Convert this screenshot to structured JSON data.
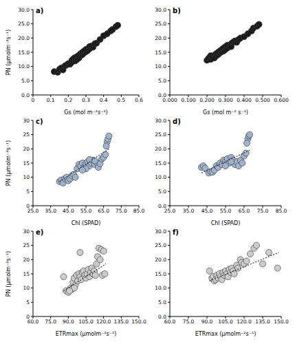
{
  "chart_data": [
    {
      "type": "scatter",
      "title": "a)",
      "x_label": "Gs (mol m⁻²s⁻¹)",
      "y_label": "PN (µmolm⁻²s⁻¹)",
      "color": "#1a1a1a",
      "marker": "circle",
      "xlim": [
        0,
        0.6
      ],
      "xticks": [
        0,
        0.1,
        0.2,
        0.3,
        0.4,
        0.5,
        0.6
      ],
      "ylim": [
        0,
        30
      ],
      "yticks": [
        {
          "value": 0,
          "label": "0.0"
        },
        {
          "value": 5,
          "label": "5.0"
        },
        {
          "value": 10,
          "label": "10.0"
        },
        {
          "value": 15,
          "label": "15.0"
        },
        {
          "value": 20,
          "label": "20.0"
        },
        {
          "value": 25,
          "label": "25.0"
        },
        {
          "value": 30,
          "label": "30.0"
        }
      ],
      "x": [
        0.12,
        0.14,
        0.15,
        0.16,
        0.17,
        0.18,
        0.19,
        0.2,
        0.21,
        0.22,
        0.22,
        0.23,
        0.24,
        0.24,
        0.25,
        0.25,
        0.26,
        0.26,
        0.27,
        0.27,
        0.28,
        0.28,
        0.29,
        0.29,
        0.3,
        0.3,
        0.31,
        0.32,
        0.32,
        0.33,
        0.34,
        0.35,
        0.36,
        0.38,
        0.4,
        0.42,
        0.44,
        0.45,
        0.47,
        0.48
      ],
      "values": [
        8.2,
        8.0,
        9.0,
        9.5,
        8.8,
        10.2,
        10.5,
        11.0,
        10.8,
        12.2,
        11.5,
        12.8,
        12.0,
        13.2,
        13.5,
        12.5,
        14.0,
        13.0,
        14.5,
        13.8,
        14.2,
        15.0,
        14.8,
        15.5,
        15.2,
        16.0,
        15.6,
        16.2,
        17.0,
        17.2,
        16.8,
        18.0,
        18.2,
        19.5,
        20.8,
        21.5,
        22.5,
        23.0,
        24.0,
        24.5
      ],
      "trend": {
        "x": [
          0.12,
          0.49
        ],
        "values": [
          7.2,
          24.0
        ],
        "line_style": "dotted"
      }
    },
    {
      "type": "scatter",
      "title": "b)",
      "x_label": "Gs (mol m⁻² s⁻¹)",
      "color": "#1a1a1a",
      "marker": "circle",
      "xlim": [
        0,
        0.6
      ],
      "xticks": [
        {
          "value": 0,
          "label": "0.000"
        },
        {
          "value": 0.1,
          "label": "0.100"
        },
        {
          "value": 0.2,
          "label": "0.200"
        },
        {
          "value": 0.3,
          "label": "0.300"
        },
        {
          "value": 0.4,
          "label": "0.400"
        },
        {
          "value": 0.5,
          "label": "0.500"
        },
        {
          "value": 0.6,
          "label": "0.600"
        }
      ],
      "ylim": [
        0,
        30
      ],
      "yticks": [
        {
          "value": 0,
          "label": "0.0"
        },
        {
          "value": 5,
          "label": "5.0"
        },
        {
          "value": 10,
          "label": "10.0"
        },
        {
          "value": 15,
          "label": "15.0"
        },
        {
          "value": 20,
          "label": "20.0"
        },
        {
          "value": 25,
          "label": "25.0"
        },
        {
          "value": 30,
          "label": "30.0"
        }
      ],
      "x": [
        0.2,
        0.21,
        0.22,
        0.22,
        0.23,
        0.24,
        0.24,
        0.25,
        0.25,
        0.26,
        0.26,
        0.27,
        0.27,
        0.28,
        0.28,
        0.29,
        0.29,
        0.3,
        0.3,
        0.31,
        0.31,
        0.32,
        0.33,
        0.33,
        0.34,
        0.35,
        0.36,
        0.37,
        0.38,
        0.4,
        0.42,
        0.44,
        0.45,
        0.47,
        0.48
      ],
      "values": [
        12.2,
        13.0,
        12.5,
        13.8,
        13.2,
        14.0,
        13.0,
        14.5,
        13.8,
        14.2,
        15.0,
        14.8,
        15.5,
        15.2,
        16.0,
        15.5,
        16.5,
        16.0,
        17.0,
        16.5,
        17.5,
        17.2,
        18.0,
        17.0,
        18.5,
        19.0,
        18.5,
        19.5,
        20.0,
        20.5,
        21.5,
        22.5,
        23.5,
        24.2,
        24.8
      ],
      "trend": {
        "x": [
          0.2,
          0.48
        ],
        "values": [
          12.0,
          24.8
        ],
        "line_style": "dotted"
      }
    },
    {
      "type": "scatter",
      "title": "c)",
      "x_label": "Chl (SPAD)",
      "y_label": "PN (µmolm⁻²s⁻¹)",
      "color": "#9fb4cc",
      "marker": "circle",
      "xlim": [
        25,
        85
      ],
      "xticks": [
        {
          "value": 25,
          "label": "25.0"
        },
        {
          "value": 35,
          "label": "35.0"
        },
        {
          "value": 45,
          "label": "45.0"
        },
        {
          "value": 55,
          "label": "55.0"
        },
        {
          "value": 65,
          "label": "65.0"
        },
        {
          "value": 75,
          "label": "75.0"
        },
        {
          "value": 85,
          "label": "85.0"
        }
      ],
      "ylim": [
        0,
        30
      ],
      "yticks": [
        0,
        5,
        10,
        15,
        20,
        25,
        30
      ],
      "x": [
        40,
        41,
        42,
        43,
        44,
        45,
        46,
        47,
        48,
        49,
        50,
        51,
        52,
        53,
        54,
        55,
        56,
        57,
        58,
        59,
        60,
        61,
        62,
        63,
        64,
        65,
        66,
        67,
        67.5,
        68,
        66.5,
        55,
        53,
        57,
        60
      ],
      "values": [
        8.5,
        9.0,
        8.0,
        9.5,
        10.0,
        8.8,
        9.5,
        10.5,
        11.0,
        10.0,
        13.0,
        14.5,
        14.0,
        15.0,
        13.5,
        14.8,
        15.5,
        14.0,
        15.0,
        16.0,
        14.5,
        15.2,
        13.5,
        14.8,
        16.5,
        17.0,
        18.0,
        22.5,
        23.5,
        24.5,
        21.0,
        13.0,
        12.5,
        16.2,
        15.8
      ],
      "trend": {
        "x": [
          40,
          68
        ],
        "values": [
          8.5,
          20.0
        ],
        "line_style": "dotted"
      }
    },
    {
      "type": "scatter",
      "title": "d)",
      "x_label": "Chl (SPAD)",
      "color": "#9fb4cc",
      "marker": "circle",
      "xlim": [
        25,
        85
      ],
      "xticks": [
        {
          "value": 25,
          "label": "25.0"
        },
        {
          "value": 35,
          "label": "35.0"
        },
        {
          "value": 45,
          "label": "45.0"
        },
        {
          "value": 55,
          "label": "55.0"
        },
        {
          "value": 65,
          "label": "65.0"
        },
        {
          "value": 75,
          "label": "75.0"
        },
        {
          "value": 85,
          "label": "85.0"
        }
      ],
      "ylim": [
        0,
        30
      ],
      "yticks": [
        {
          "value": 0,
          "label": "0.0"
        },
        {
          "value": 5,
          "label": "5.0"
        },
        {
          "value": 10,
          "label": "10.0"
        },
        {
          "value": 15,
          "label": "15.0"
        },
        {
          "value": 20,
          "label": "20.0"
        },
        {
          "value": 25,
          "label": "25.0"
        },
        {
          "value": 30,
          "label": "30.0"
        }
      ],
      "x": [
        42,
        43,
        44,
        46,
        47,
        48,
        49,
        50,
        51,
        52,
        53,
        54,
        55,
        56,
        57,
        58,
        59,
        60,
        61,
        62,
        63,
        64,
        65,
        66,
        67,
        67.5,
        68,
        66.5,
        55,
        58
      ],
      "values": [
        13.5,
        14.0,
        13.2,
        11.5,
        12.0,
        11.8,
        12.5,
        14.0,
        13.5,
        15.0,
        14.5,
        16.0,
        15.5,
        16.5,
        15.0,
        17.0,
        16.0,
        14.5,
        15.5,
        14.0,
        16.0,
        15.0,
        17.5,
        18.5,
        23.5,
        24.5,
        25.0,
        22.0,
        14.0,
        15.5
      ],
      "trend": {
        "x": [
          42,
          68
        ],
        "values": [
          11.5,
          19.5
        ],
        "line_style": "dotted"
      }
    },
    {
      "type": "scatter",
      "title": "e)",
      "x_label": "ETRmax (µmolm⁻²s⁻¹)",
      "y_label": "PN (µmolm⁻²s⁻¹)",
      "color": "#cccccc",
      "marker": "circle",
      "xlim": [
        60,
        150
      ],
      "xticks": [
        {
          "value": 60,
          "label": "60.0"
        },
        {
          "value": 75,
          "label": "75.0"
        },
        {
          "value": 90,
          "label": "90.0"
        },
        {
          "value": 105,
          "label": "105.0"
        },
        {
          "value": 120,
          "label": "120.0"
        },
        {
          "value": 135,
          "label": "135.0"
        },
        {
          "value": 150,
          "label": "150.0"
        }
      ],
      "ylim": [
        0,
        30
      ],
      "yticks": [
        0,
        5,
        10,
        15,
        20,
        25,
        30
      ],
      "x": [
        86,
        88,
        90,
        92,
        93,
        94,
        95,
        96,
        97,
        98,
        99,
        100,
        101,
        102,
        103,
        104,
        105,
        106,
        107,
        108,
        109,
        110,
        111,
        112,
        113,
        114,
        115,
        116,
        117,
        118,
        119,
        120,
        121,
        100,
        95,
        91
      ],
      "values": [
        14.0,
        9.0,
        8.5,
        10.0,
        9.5,
        12.0,
        13.5,
        11.0,
        14.5,
        12.5,
        15.0,
        14.0,
        13.0,
        15.5,
        16.0,
        14.5,
        13.5,
        15.0,
        16.5,
        14.0,
        15.5,
        17.0,
        15.0,
        16.0,
        14.5,
        18.5,
        21.0,
        24.0,
        20.0,
        23.5,
        14.5,
        23.0,
        15.0,
        22.5,
        10.0,
        9.0
      ],
      "trend": {
        "x": [
          86,
          122
        ],
        "values": [
          9.0,
          18.5
        ],
        "line_style": "dotted"
      }
    },
    {
      "type": "scatter",
      "title": "f)",
      "x_label": "ETRmax (µmolm⁻²s⁻¹)",
      "color": "#cccccc",
      "marker": "circle",
      "xlim": [
        60,
        150
      ],
      "xticks": [
        {
          "value": 60,
          "label": "60.0"
        },
        {
          "value": 75,
          "label": "75.0"
        },
        {
          "value": 90,
          "label": "90.0"
        },
        {
          "value": 105,
          "label": "105.0"
        },
        {
          "value": 120,
          "label": "120.0"
        },
        {
          "value": 135,
          "label": "135.0"
        },
        {
          "value": 150,
          "label": "150.0"
        }
      ],
      "ylim": [
        0,
        30
      ],
      "yticks": [
        {
          "value": 0,
          "label": "0.0"
        },
        {
          "value": 5,
          "label": "5.0"
        },
        {
          "value": 10,
          "label": "10.0"
        },
        {
          "value": 15,
          "label": "15.0"
        },
        {
          "value": 20,
          "label": "20.0"
        },
        {
          "value": 25,
          "label": "25.0"
        },
        {
          "value": 30,
          "label": "30.0"
        }
      ],
      "x": [
        92,
        94,
        95,
        96,
        97,
        98,
        99,
        100,
        101,
        102,
        103,
        104,
        105,
        106,
        107,
        108,
        109,
        110,
        111,
        112,
        114,
        115,
        117,
        118,
        120,
        122,
        125,
        128,
        130,
        140,
        147,
        135
      ],
      "values": [
        16.0,
        13.5,
        14.0,
        12.5,
        13.0,
        14.5,
        13.5,
        15.0,
        14.0,
        13.0,
        15.5,
        14.5,
        16.0,
        15.0,
        14.0,
        16.5,
        15.5,
        17.0,
        16.0,
        15.0,
        18.0,
        17.0,
        20.0,
        19.0,
        18.5,
        19.5,
        22.0,
        24.0,
        25.0,
        22.5,
        17.0,
        18.5
      ],
      "trend": {
        "x": [
          92,
          148
        ],
        "values": [
          12.5,
          22.5
        ],
        "line_style": "dotted"
      }
    }
  ]
}
